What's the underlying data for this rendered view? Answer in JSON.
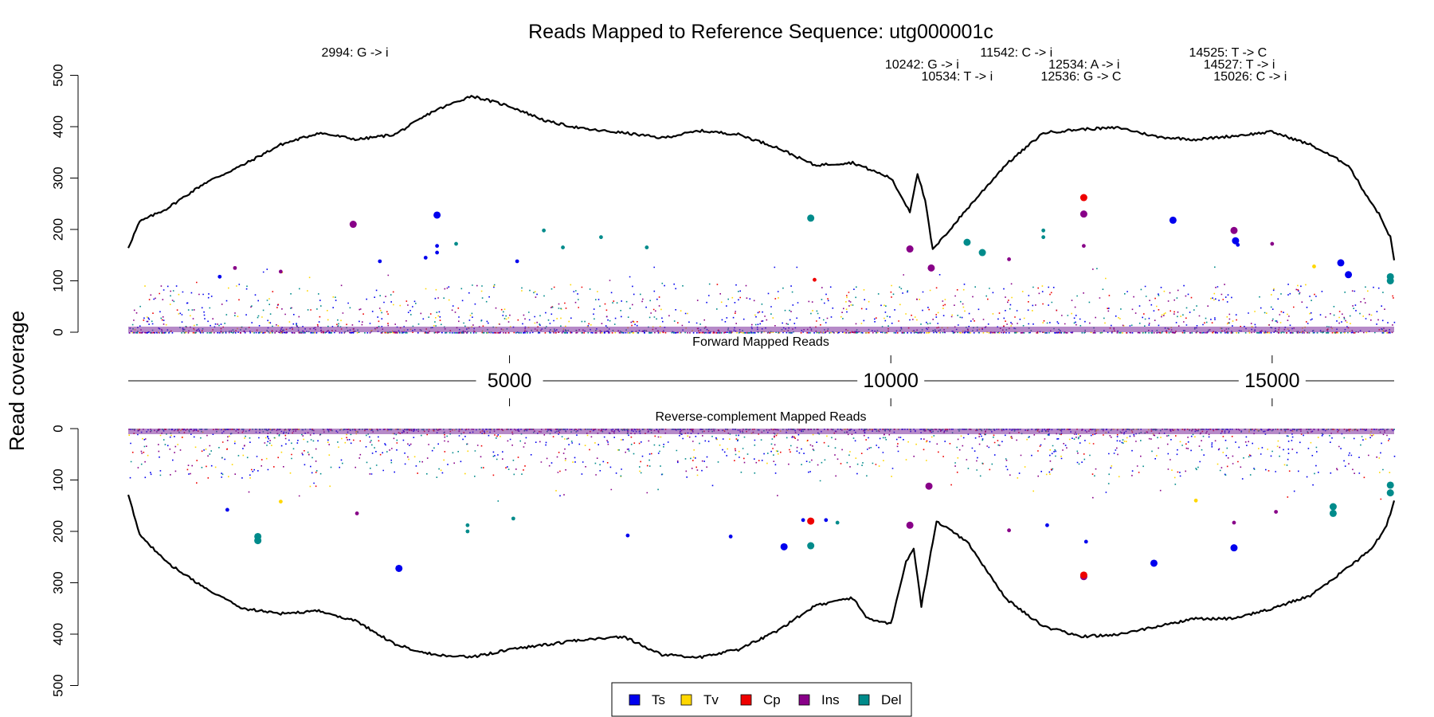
{
  "chart_data": {
    "type": "scatter",
    "title": "Reads Mapped to Reference Sequence: utg000001c",
    "ylabel": "Read coverage",
    "forward_panel_label": "Forward Mapped Reads",
    "reverse_panel_label": "Reverse-complement Mapped Reads",
    "xlim": [
      1,
      16600
    ],
    "ylim": [
      0,
      500
    ],
    "x_ticks": [
      5000,
      10000,
      15000
    ],
    "x_tick_labels": [
      "5000",
      "10000",
      "15000"
    ],
    "y_ticks": [
      0,
      100,
      200,
      300,
      400,
      500
    ],
    "y_tick_labels": [
      "0",
      "100",
      "200",
      "300",
      "400",
      "500"
    ],
    "grid": false,
    "legend_position": "bottom",
    "legend": [
      {
        "name": "Ts",
        "color": "#0000ee"
      },
      {
        "name": "Tv",
        "color": "#ffd700"
      },
      {
        "name": "Cp",
        "color": "#ee0000"
      },
      {
        "name": "Ins",
        "color": "#880088"
      },
      {
        "name": "Del",
        "color": "#008b8b"
      }
    ],
    "annotations": [
      {
        "x": 2994,
        "label": "2994: G -> i"
      },
      {
        "x": 10242,
        "label": "10242: G -> i"
      },
      {
        "x": 10534,
        "label": "10534: T -> i"
      },
      {
        "x": 11542,
        "label": "11542: C -> i"
      },
      {
        "x": 12534,
        "label": "12534: A -> i"
      },
      {
        "x": 12536,
        "label": "12536: G -> C"
      },
      {
        "x": 14525,
        "label": "14525: T -> C"
      },
      {
        "x": 14527,
        "label": "14527: T -> i"
      },
      {
        "x": 15026,
        "label": "15026: C -> i"
      }
    ],
    "forward_coverage": [
      [
        1,
        165
      ],
      [
        150,
        215
      ],
      [
        500,
        240
      ],
      [
        1000,
        290
      ],
      [
        1500,
        325
      ],
      [
        2000,
        365
      ],
      [
        2500,
        388
      ],
      [
        3000,
        375
      ],
      [
        3500,
        385
      ],
      [
        4000,
        430
      ],
      [
        4500,
        460
      ],
      [
        5000,
        440
      ],
      [
        5500,
        410
      ],
      [
        6000,
        395
      ],
      [
        6500,
        388
      ],
      [
        7000,
        378
      ],
      [
        7500,
        392
      ],
      [
        8000,
        385
      ],
      [
        8500,
        360
      ],
      [
        9000,
        325
      ],
      [
        9500,
        330
      ],
      [
        10000,
        300
      ],
      [
        10250,
        235
      ],
      [
        10350,
        310
      ],
      [
        10450,
        255
      ],
      [
        10550,
        160
      ],
      [
        11000,
        240
      ],
      [
        11500,
        325
      ],
      [
        12000,
        388
      ],
      [
        12500,
        395
      ],
      [
        13000,
        398
      ],
      [
        13500,
        380
      ],
      [
        14000,
        375
      ],
      [
        14500,
        382
      ],
      [
        15000,
        390
      ],
      [
        15500,
        365
      ],
      [
        16000,
        325
      ],
      [
        16200,
        275
      ],
      [
        16400,
        230
      ],
      [
        16550,
        185
      ],
      [
        16600,
        140
      ]
    ],
    "reverse_coverage": [
      [
        1,
        130
      ],
      [
        150,
        205
      ],
      [
        500,
        260
      ],
      [
        1000,
        310
      ],
      [
        1500,
        350
      ],
      [
        2000,
        360
      ],
      [
        2500,
        355
      ],
      [
        3000,
        375
      ],
      [
        3500,
        420
      ],
      [
        4000,
        440
      ],
      [
        4500,
        445
      ],
      [
        5000,
        430
      ],
      [
        5500,
        420
      ],
      [
        6000,
        410
      ],
      [
        6500,
        405
      ],
      [
        7000,
        440
      ],
      [
        7500,
        445
      ],
      [
        8000,
        430
      ],
      [
        8500,
        395
      ],
      [
        9000,
        345
      ],
      [
        9500,
        330
      ],
      [
        9700,
        370
      ],
      [
        10000,
        380
      ],
      [
        10200,
        260
      ],
      [
        10300,
        235
      ],
      [
        10400,
        345
      ],
      [
        10500,
        260
      ],
      [
        10600,
        180
      ],
      [
        11000,
        220
      ],
      [
        11500,
        330
      ],
      [
        12000,
        385
      ],
      [
        12500,
        405
      ],
      [
        13000,
        400
      ],
      [
        13500,
        385
      ],
      [
        14000,
        370
      ],
      [
        14500,
        370
      ],
      [
        15000,
        350
      ],
      [
        15500,
        325
      ],
      [
        16000,
        270
      ],
      [
        16300,
        235
      ],
      [
        16500,
        190
      ],
      [
        16600,
        140
      ]
    ],
    "forward_points": [
      {
        "x": 1200,
        "y": 108,
        "type": "Ts"
      },
      {
        "x": 1400,
        "y": 125,
        "type": "Ins"
      },
      {
        "x": 2000,
        "y": 118,
        "type": "Ins"
      },
      {
        "x": 2950,
        "y": 210,
        "type": "Ins",
        "large": true
      },
      {
        "x": 3300,
        "y": 138,
        "type": "Ts"
      },
      {
        "x": 3900,
        "y": 145,
        "type": "Ts"
      },
      {
        "x": 4050,
        "y": 228,
        "type": "Ts",
        "large": true
      },
      {
        "x": 4050,
        "y": 168,
        "type": "Ts"
      },
      {
        "x": 4050,
        "y": 155,
        "type": "Ts"
      },
      {
        "x": 4300,
        "y": 172,
        "type": "Del"
      },
      {
        "x": 5100,
        "y": 138,
        "type": "Ts"
      },
      {
        "x": 5450,
        "y": 198,
        "type": "Del"
      },
      {
        "x": 5700,
        "y": 165,
        "type": "Del"
      },
      {
        "x": 6200,
        "y": 185,
        "type": "Del"
      },
      {
        "x": 6800,
        "y": 165,
        "type": "Del"
      },
      {
        "x": 8950,
        "y": 222,
        "type": "Del",
        "large": true
      },
      {
        "x": 9000,
        "y": 102,
        "type": "Cp"
      },
      {
        "x": 10250,
        "y": 162,
        "type": "Ins",
        "large": true
      },
      {
        "x": 10530,
        "y": 125,
        "type": "Ins",
        "large": true
      },
      {
        "x": 11000,
        "y": 175,
        "type": "Del",
        "large": true
      },
      {
        "x": 11200,
        "y": 155,
        "type": "Del",
        "large": true
      },
      {
        "x": 11550,
        "y": 142,
        "type": "Ins"
      },
      {
        "x": 12000,
        "y": 198,
        "type": "Del"
      },
      {
        "x": 12000,
        "y": 185,
        "type": "Del"
      },
      {
        "x": 12530,
        "y": 262,
        "type": "Cp",
        "large": true
      },
      {
        "x": 12530,
        "y": 230,
        "type": "Ins",
        "large": true
      },
      {
        "x": 12530,
        "y": 168,
        "type": "Ins"
      },
      {
        "x": 13700,
        "y": 218,
        "type": "Ts",
        "large": true
      },
      {
        "x": 14500,
        "y": 198,
        "type": "Ins",
        "large": true
      },
      {
        "x": 14520,
        "y": 178,
        "type": "Ts",
        "large": true
      },
      {
        "x": 14550,
        "y": 170,
        "type": "Ts"
      },
      {
        "x": 15000,
        "y": 172,
        "type": "Ins"
      },
      {
        "x": 15550,
        "y": 128,
        "type": "Tv"
      },
      {
        "x": 15900,
        "y": 135,
        "type": "Ts",
        "large": true
      },
      {
        "x": 16000,
        "y": 112,
        "type": "Ts",
        "large": true
      },
      {
        "x": 16550,
        "y": 108,
        "type": "Del",
        "large": true
      },
      {
        "x": 16550,
        "y": 100,
        "type": "Del",
        "large": true
      }
    ],
    "reverse_points": [
      {
        "x": 1300,
        "y": 158,
        "type": "Ts"
      },
      {
        "x": 1700,
        "y": 210,
        "type": "Del",
        "large": true
      },
      {
        "x": 1700,
        "y": 218,
        "type": "Del",
        "large": true
      },
      {
        "x": 2000,
        "y": 142,
        "type": "Tv"
      },
      {
        "x": 3000,
        "y": 165,
        "type": "Ins"
      },
      {
        "x": 3550,
        "y": 272,
        "type": "Ts",
        "large": true
      },
      {
        "x": 4450,
        "y": 188,
        "type": "Del"
      },
      {
        "x": 4450,
        "y": 200,
        "type": "Del"
      },
      {
        "x": 5050,
        "y": 175,
        "type": "Del"
      },
      {
        "x": 6550,
        "y": 208,
        "type": "Ts"
      },
      {
        "x": 7900,
        "y": 210,
        "type": "Ts"
      },
      {
        "x": 8600,
        "y": 230,
        "type": "Ts",
        "large": true
      },
      {
        "x": 8850,
        "y": 178,
        "type": "Ts"
      },
      {
        "x": 8950,
        "y": 180,
        "type": "Cp",
        "large": true
      },
      {
        "x": 8950,
        "y": 228,
        "type": "Del",
        "large": true
      },
      {
        "x": 9150,
        "y": 178,
        "type": "Ts"
      },
      {
        "x": 9300,
        "y": 183,
        "type": "Del"
      },
      {
        "x": 10250,
        "y": 188,
        "type": "Ins",
        "large": true
      },
      {
        "x": 10500,
        "y": 112,
        "type": "Ins",
        "large": true
      },
      {
        "x": 11550,
        "y": 198,
        "type": "Ins"
      },
      {
        "x": 12050,
        "y": 188,
        "type": "Ts"
      },
      {
        "x": 12530,
        "y": 288,
        "type": "Ins",
        "large": true
      },
      {
        "x": 12530,
        "y": 285,
        "type": "Cp",
        "large": true
      },
      {
        "x": 12560,
        "y": 220,
        "type": "Ts"
      },
      {
        "x": 13450,
        "y": 262,
        "type": "Ts",
        "large": true
      },
      {
        "x": 14500,
        "y": 232,
        "type": "Ts",
        "large": true
      },
      {
        "x": 14500,
        "y": 183,
        "type": "Ins"
      },
      {
        "x": 14000,
        "y": 140,
        "type": "Tv"
      },
      {
        "x": 15050,
        "y": 162,
        "type": "Ins"
      },
      {
        "x": 15800,
        "y": 165,
        "type": "Del",
        "large": true
      },
      {
        "x": 15800,
        "y": 152,
        "type": "Del",
        "large": true
      },
      {
        "x": 16550,
        "y": 125,
        "type": "Del",
        "large": true
      },
      {
        "x": 16550,
        "y": 110,
        "type": "Del",
        "large": true
      }
    ]
  }
}
